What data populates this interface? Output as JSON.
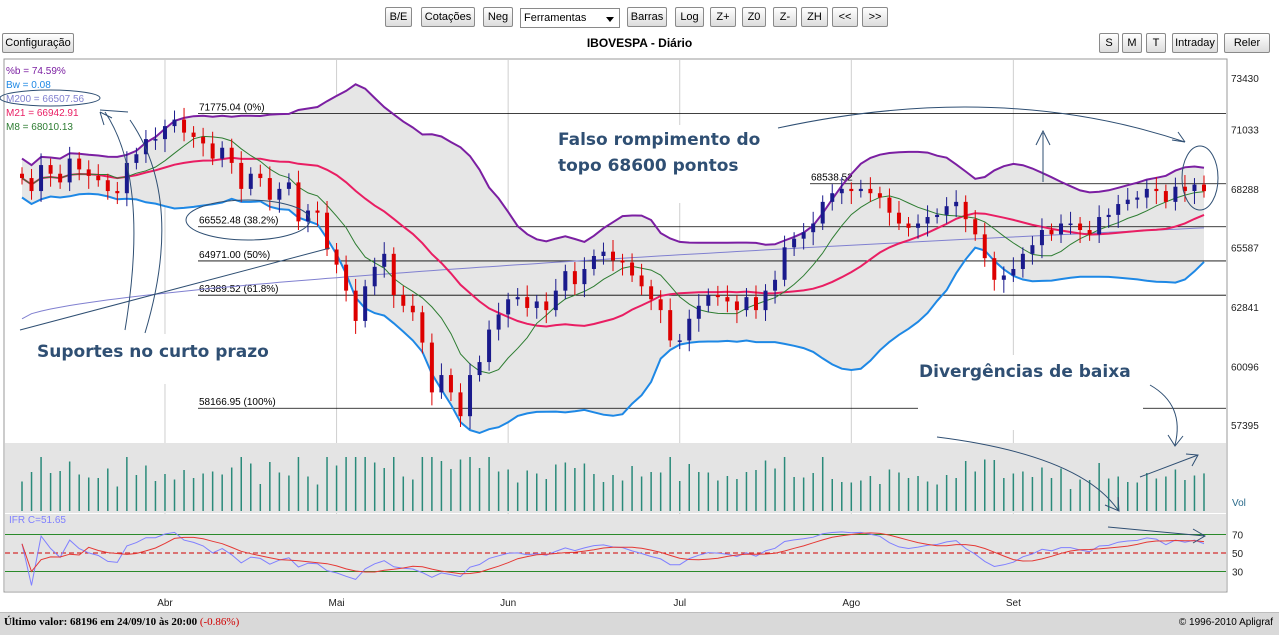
{
  "toolbar": {
    "buttons": [
      "B/E",
      "Cotações",
      "Neg",
      "Barras",
      "Log",
      "Z+",
      "Z0",
      "Z-",
      "ZH",
      "<<",
      ">>"
    ],
    "tools_select": "Ferramentas",
    "config_label": "Configuração",
    "right_buttons": [
      "S",
      "M",
      "T",
      "Intraday",
      "Reler"
    ]
  },
  "title": "IBOVESPA - Diário",
  "status": {
    "last_label": "Último valor: 68196 em 24/09/10 às 20:00",
    "change": "(-0.86%)",
    "copyright": "© 1996-2010 Apligraf"
  },
  "colors": {
    "up_candle": "#1a1a8c",
    "down_candle": "#dd0000",
    "bollinger": "#7b1fa2",
    "bollinger_lower": "#1e88e5",
    "m21": "#e91e63",
    "m8": "#2e7d32",
    "m200": "#8080d0",
    "volume": "#2a8a7a",
    "ifr": "#8080ff",
    "ifr_signal": "#e53935",
    "annotation": "#2f4f73"
  },
  "chart_data": {
    "type": "candlestick",
    "title": "IBOVESPA - Diário",
    "yticks": [
      73430,
      71033,
      68288,
      65587,
      62841,
      60096,
      57395
    ],
    "ylim": [
      56700,
      74300
    ],
    "xticks": [
      "Abr",
      "Mai",
      "Jun",
      "Jul",
      "Ago",
      "Set"
    ],
    "indicators": [
      {
        "label": "%b = 74.59%",
        "color": "#7b1fa2"
      },
      {
        "label": "Bw = 0.08",
        "color": "#1e88e5"
      },
      {
        "label": "M200 = 66507.56",
        "color": "#8080d0"
      },
      {
        "label": "M21 = 66942.91",
        "color": "#e91e63"
      },
      {
        "label": "M8 = 68010.13",
        "color": "#2e7d32"
      }
    ],
    "fibonacci_levels": [
      {
        "label": "71775.04 (0%)",
        "value": 71775.04
      },
      {
        "label": "68538.52",
        "value": 68538.52
      },
      {
        "label": "66552.48 (38.2%)",
        "value": 66552.48
      },
      {
        "label": "64971.00 (50%)",
        "value": 64971.0
      },
      {
        "label": "63389.52 (61.8%)",
        "value": 63389.52
      },
      {
        "label": "58166.95 (100%)",
        "value": 58166.95
      }
    ],
    "close_series": [
      68800,
      68200,
      69400,
      69000,
      68600,
      69700,
      69200,
      68900,
      68700,
      68200,
      68100,
      69500,
      69900,
      70600,
      70600,
      71200,
      71500,
      70900,
      70700,
      70400,
      69700,
      70200,
      69500,
      68300,
      69000,
      68800,
      67800,
      68300,
      68600,
      66800,
      67300,
      67200,
      65500,
      64800,
      63600,
      62200,
      63800,
      64700,
      65300,
      63400,
      62900,
      62600,
      61200,
      58900,
      59700,
      58900,
      57800,
      59700,
      60300,
      61800,
      62500,
      63200,
      63300,
      62800,
      63100,
      62700,
      63600,
      64500,
      63900,
      64600,
      65200,
      65400,
      65000,
      64900,
      64300,
      63800,
      63200,
      62700,
      61300,
      61300,
      62300,
      62900,
      63400,
      63300,
      63100,
      62700,
      63300,
      62700,
      63600,
      64100,
      65600,
      66000,
      66300,
      66700,
      67700,
      68100,
      68300,
      68200,
      68300,
      68100,
      67900,
      67200,
      66700,
      66500,
      66700,
      67000,
      67100,
      67500,
      67700,
      66900,
      66200,
      65100,
      64100,
      64300,
      64600,
      65300,
      65700,
      66400,
      66200,
      66700,
      66700,
      66400,
      66200,
      67000,
      67100,
      67600,
      67800,
      67900,
      68300,
      68200,
      67700,
      68400,
      68200,
      68500,
      68196
    ],
    "volume_label": "Vol",
    "ifr": {
      "label": "IFR C=51.65",
      "levels": [
        70,
        50,
        30
      ]
    }
  },
  "annotations": {
    "supports": "Suportes no curto prazo",
    "false_break_1": "Falso rompimento do",
    "false_break_2": "topo 68600 pontos",
    "divergence": "Divergências de baixa"
  }
}
